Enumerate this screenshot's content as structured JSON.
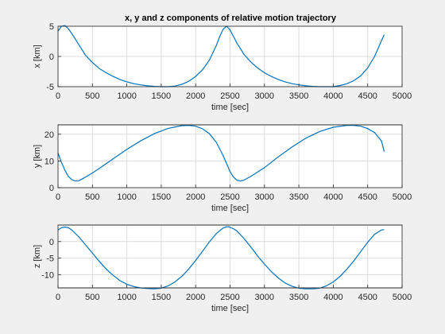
{
  "figure": {
    "title": "x, y and z components of relative motion trajectory"
  },
  "colors": {
    "line": "#0072bd",
    "background": "#f0f0f0"
  },
  "chart_data": [
    {
      "type": "line",
      "title": "x, y and z components of relative motion trajectory",
      "xlabel": "time [sec]",
      "ylabel": "x [km]",
      "xlim": [
        0,
        5000
      ],
      "ylim": [
        -5,
        5
      ],
      "xticks": [
        0,
        500,
        1000,
        1500,
        2000,
        2500,
        3000,
        3500,
        4000,
        4500,
        5000
      ],
      "yticks": [
        -5,
        0,
        5
      ],
      "grid": true,
      "series": [
        {
          "x": [
            0,
            50,
            100,
            150,
            200,
            300,
            400,
            500,
            600,
            700,
            800,
            900,
            1000,
            1100,
            1200,
            1300,
            1400,
            1500,
            1600,
            1700,
            1800,
            1900,
            2000,
            2100,
            2200,
            2300,
            2350,
            2400,
            2450,
            2500,
            2550,
            2600,
            2700,
            2800,
            2900,
            3000,
            3100,
            3200,
            3300,
            3400,
            3500,
            3600,
            3700,
            3800,
            3900,
            4000,
            4100,
            4200,
            4300,
            4400,
            4500,
            4600,
            4700,
            4740
          ],
          "y": [
            4.2,
            5.0,
            5.1,
            4.6,
            3.8,
            2.0,
            0.2,
            -1.0,
            -2.0,
            -2.7,
            -3.3,
            -3.8,
            -4.2,
            -4.5,
            -4.7,
            -4.85,
            -4.95,
            -5.0,
            -5.0,
            -4.9,
            -4.6,
            -4.1,
            -3.3,
            -2.2,
            -0.6,
            1.8,
            3.3,
            4.5,
            5.0,
            4.4,
            3.3,
            2.2,
            0.4,
            -0.9,
            -1.9,
            -2.7,
            -3.3,
            -3.8,
            -4.2,
            -4.5,
            -4.7,
            -4.85,
            -4.95,
            -5.0,
            -5.0,
            -5.0,
            -4.8,
            -4.5,
            -4.0,
            -3.2,
            -1.9,
            0.0,
            2.6,
            3.6
          ]
        }
      ]
    },
    {
      "type": "line",
      "xlabel": "time [sec]",
      "ylabel": "y [km]",
      "xlim": [
        0,
        5000
      ],
      "ylim": [
        0,
        23.5
      ],
      "xticks": [
        0,
        500,
        1000,
        1500,
        2000,
        2500,
        3000,
        3500,
        4000,
        4500,
        5000
      ],
      "yticks": [
        0,
        10,
        20
      ],
      "grid": true,
      "series": [
        {
          "x": [
            0,
            50,
            100,
            150,
            200,
            250,
            300,
            350,
            400,
            500,
            600,
            800,
            1000,
            1200,
            1400,
            1600,
            1800,
            1900,
            2000,
            2100,
            2200,
            2300,
            2400,
            2450,
            2500,
            2550,
            2600,
            2650,
            2700,
            2800,
            3000,
            3200,
            3400,
            3600,
            3800,
            4000,
            4200,
            4300,
            4400,
            4500,
            4600,
            4700,
            4740
          ],
          "y": [
            13,
            9.5,
            6.5,
            4.2,
            3.0,
            2.5,
            2.6,
            3.2,
            4.0,
            5.5,
            7.2,
            10.8,
            14.3,
            17.5,
            20.2,
            22.2,
            23.2,
            23.3,
            23.0,
            22.0,
            20.2,
            17.0,
            12.0,
            9.0,
            6.0,
            4.0,
            2.8,
            2.5,
            2.8,
            4.2,
            7.5,
            11.5,
            15.2,
            18.5,
            21.0,
            22.6,
            23.3,
            23.3,
            23.0,
            22.1,
            20.6,
            17.5,
            13.5
          ]
        }
      ]
    },
    {
      "type": "line",
      "xlabel": "time [sec]",
      "ylabel": "z [km]",
      "xlim": [
        0,
        5000
      ],
      "ylim": [
        -14,
        5
      ],
      "xticks": [
        0,
        500,
        1000,
        1500,
        2000,
        2500,
        3000,
        3500,
        4000,
        4500,
        5000
      ],
      "yticks": [
        -10,
        -5,
        0
      ],
      "grid": true,
      "series": [
        {
          "x": [
            0,
            50,
            100,
            150,
            200,
            300,
            400,
            500,
            600,
            700,
            800,
            900,
            1000,
            1100,
            1200,
            1300,
            1380,
            1450,
            1500,
            1600,
            1700,
            1800,
            1900,
            2000,
            2100,
            2200,
            2300,
            2400,
            2450,
            2480,
            2550,
            2600,
            2700,
            2800,
            2900,
            3000,
            3100,
            3200,
            3300,
            3400,
            3500,
            3600,
            3700,
            3750,
            3800,
            3900,
            4000,
            4100,
            4200,
            4300,
            4400,
            4500,
            4600,
            4700,
            4740
          ],
          "y": [
            3.5,
            4.2,
            4.4,
            4.2,
            3.5,
            1.5,
            -1.0,
            -3.5,
            -6.0,
            -8.3,
            -10.2,
            -11.8,
            -12.9,
            -13.6,
            -14.0,
            -14.2,
            -14.3,
            -14.2,
            -14.1,
            -13.4,
            -12.2,
            -10.5,
            -8.3,
            -5.7,
            -2.9,
            -0.1,
            2.4,
            4.1,
            4.5,
            4.5,
            3.9,
            3.2,
            1.0,
            -1.6,
            -4.3,
            -6.8,
            -9.1,
            -11.0,
            -12.5,
            -13.5,
            -14.1,
            -14.3,
            -14.3,
            -14.2,
            -14.1,
            -13.4,
            -12.2,
            -10.5,
            -8.3,
            -5.8,
            -3.0,
            -0.2,
            2.2,
            3.5,
            3.6
          ]
        }
      ]
    }
  ]
}
